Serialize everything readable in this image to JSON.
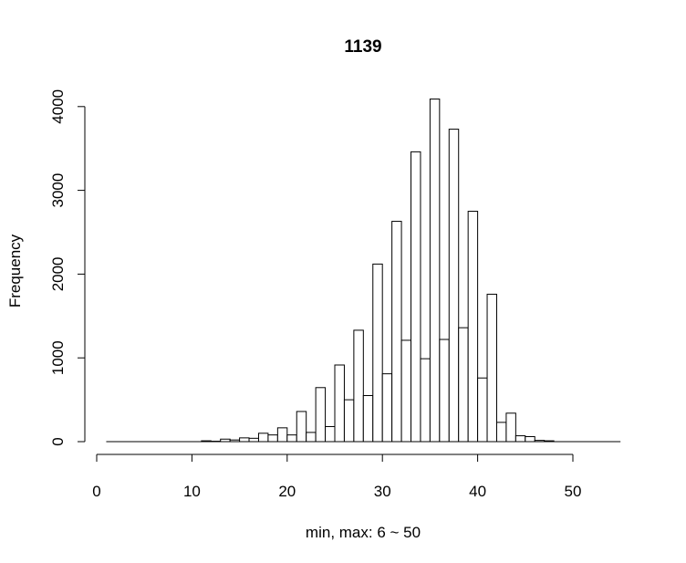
{
  "chart_data": {
    "type": "bar",
    "title": "1139",
    "xlabel": "min, max:  6  ~  50",
    "ylabel": "Frequency",
    "xlim": [
      1,
      55
    ],
    "ylim": [
      0,
      4000
    ],
    "x_ticks": [
      0,
      10,
      20,
      30,
      40,
      50
    ],
    "y_ticks": [
      0,
      1000,
      2000,
      3000,
      4000
    ],
    "bin_width": 1,
    "bins": [
      {
        "x": 11,
        "y": 10
      },
      {
        "x": 12,
        "y": 5
      },
      {
        "x": 13,
        "y": 30
      },
      {
        "x": 14,
        "y": 20
      },
      {
        "x": 15,
        "y": 45
      },
      {
        "x": 16,
        "y": 40
      },
      {
        "x": 17,
        "y": 100
      },
      {
        "x": 18,
        "y": 80
      },
      {
        "x": 19,
        "y": 165
      },
      {
        "x": 20,
        "y": 80
      },
      {
        "x": 21,
        "y": 360
      },
      {
        "x": 22,
        "y": 110
      },
      {
        "x": 23,
        "y": 645
      },
      {
        "x": 24,
        "y": 180
      },
      {
        "x": 25,
        "y": 915
      },
      {
        "x": 26,
        "y": 500
      },
      {
        "x": 27,
        "y": 1330
      },
      {
        "x": 28,
        "y": 550
      },
      {
        "x": 29,
        "y": 2120
      },
      {
        "x": 30,
        "y": 810
      },
      {
        "x": 31,
        "y": 2630
      },
      {
        "x": 32,
        "y": 1210
      },
      {
        "x": 33,
        "y": 3460
      },
      {
        "x": 34,
        "y": 990
      },
      {
        "x": 35,
        "y": 4090
      },
      {
        "x": 36,
        "y": 1220
      },
      {
        "x": 37,
        "y": 3730
      },
      {
        "x": 38,
        "y": 1360
      },
      {
        "x": 39,
        "y": 2750
      },
      {
        "x": 40,
        "y": 760
      },
      {
        "x": 41,
        "y": 1760
      },
      {
        "x": 42,
        "y": 230
      },
      {
        "x": 43,
        "y": 340
      },
      {
        "x": 44,
        "y": 70
      },
      {
        "x": 45,
        "y": 60
      },
      {
        "x": 46,
        "y": 15
      },
      {
        "x": 47,
        "y": 10
      }
    ]
  }
}
